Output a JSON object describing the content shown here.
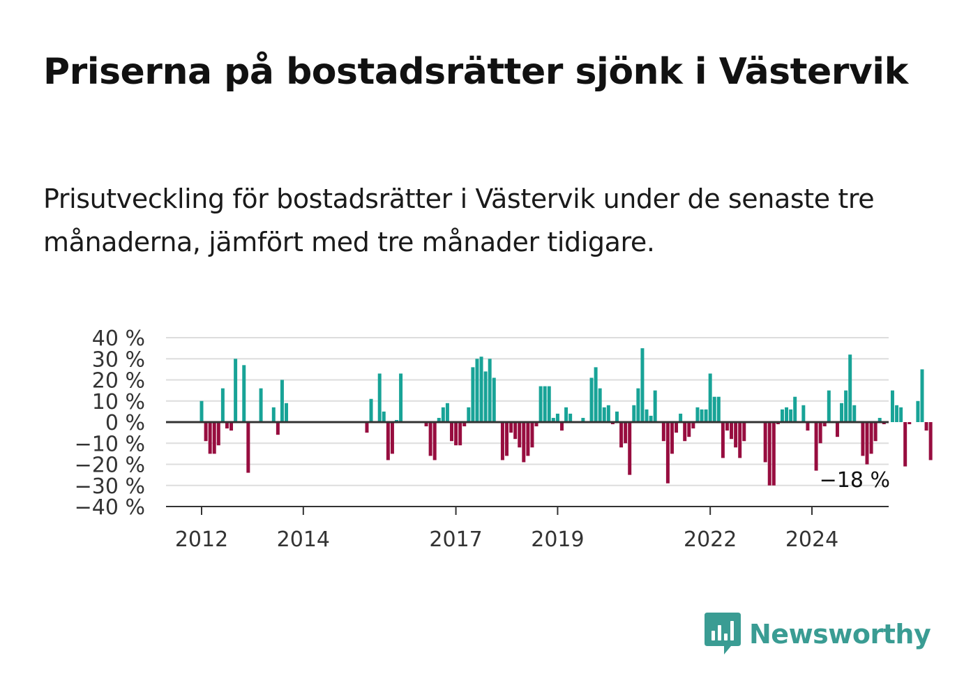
{
  "title": "Priserna på bostadsrätter sjönk i Västervik",
  "subtitle": "Prisutveckling för bostadsrätter i Västervik under de senaste tre månaderna, jämfört med tre månader tidigare.",
  "brand": {
    "name": "Newsworthy",
    "color": "#3a9c93",
    "logo_icon": "bar-chart-speech-bubble-icon"
  },
  "colors": {
    "positive": "#18a397",
    "negative": "#970d3f",
    "grid": "#dddddd",
    "axis": "#333333"
  },
  "chart_data": {
    "type": "bar",
    "title": "Priserna på bostadsrätter sjönk i Västervik",
    "subtitle": "Prisutveckling för bostadsrätter i Västervik under de senaste tre månaderna, jämfört med tre månader tidigare.",
    "xlabel": "",
    "ylabel": "",
    "unit": "%",
    "x_start": "2012-01",
    "ylim": [
      -40,
      40
    ],
    "y_ticks": [
      40,
      30,
      20,
      10,
      0,
      -10,
      -20,
      -30,
      -40
    ],
    "y_tick_labels": [
      "40 %",
      "30 %",
      "20 %",
      "10 %",
      "0 %",
      "−10 %",
      "−20 %",
      "−30 %",
      "−40 %"
    ],
    "x_ticks": [
      "2012",
      "2014",
      "2017",
      "2019",
      "2022",
      "2024"
    ],
    "grid": true,
    "annotation": "−18 %",
    "series": [
      {
        "values": [
          10,
          -9,
          -15,
          -15,
          -11,
          16,
          -3,
          -4,
          30,
          null,
          27,
          -24,
          null,
          null,
          16,
          null,
          null,
          7,
          -6,
          20,
          9,
          null,
          null,
          null,
          null,
          null,
          null,
          null,
          null,
          null,
          null,
          null,
          null,
          null,
          null,
          null,
          null,
          null,
          null,
          -5,
          11,
          null,
          23,
          5,
          -18,
          -15,
          1,
          23,
          null,
          null,
          null,
          null,
          null,
          -2,
          -16,
          -18,
          2,
          7,
          9,
          -9,
          -11,
          -11,
          -2,
          7,
          26,
          30,
          31,
          24,
          30,
          21,
          null,
          -18,
          -16,
          -5,
          -8,
          -12,
          -19,
          -16,
          -12,
          -2,
          17,
          17,
          17,
          2,
          4,
          -4,
          7,
          4,
          null,
          null,
          2,
          null,
          21,
          26,
          16,
          7,
          8,
          -1,
          5,
          -12,
          -10,
          -25,
          8,
          16,
          35,
          6,
          3,
          15,
          null,
          -9,
          -29,
          -15,
          -5,
          4,
          -9,
          -7,
          -3,
          7,
          6,
          6,
          23,
          12,
          12,
          -17,
          -4,
          -8,
          -12,
          -17,
          -9,
          null,
          null,
          null,
          null,
          -19,
          -30,
          -30,
          -1,
          6,
          7,
          6,
          12,
          null,
          8,
          -4,
          null,
          -23,
          -10,
          -2,
          15,
          null,
          -7,
          9,
          15,
          32,
          8,
          null,
          -16,
          -20,
          -15,
          -9,
          2,
          -1,
          null,
          15,
          8,
          7,
          -21,
          -1,
          null,
          10,
          25,
          -4,
          -18
        ]
      }
    ]
  }
}
